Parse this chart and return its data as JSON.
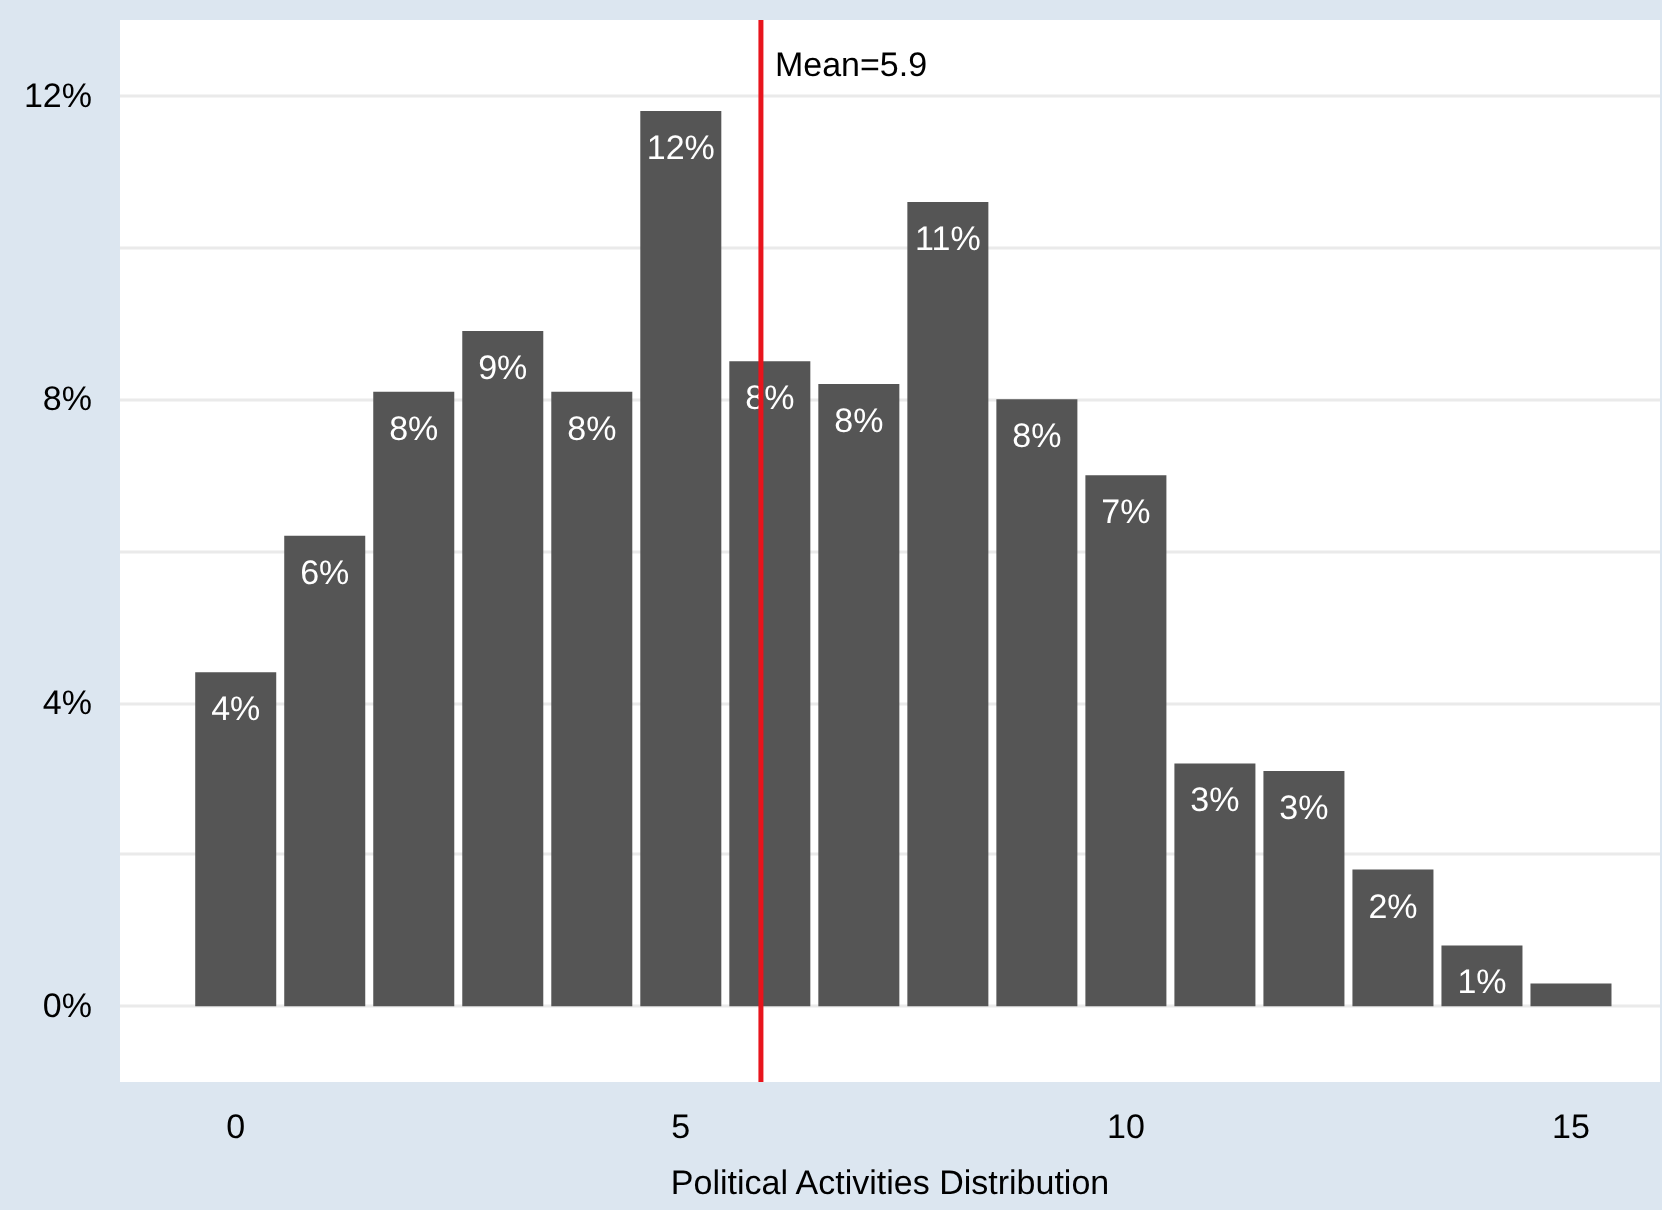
{
  "chart_data": {
    "type": "histogram",
    "xlabel": "Political Activities Distribution",
    "bins": [
      -0.5,
      0.5,
      1.5,
      2.5,
      3.5,
      4.5,
      5.5,
      6.5,
      7.5,
      8.5,
      9.5,
      10.5,
      11.5,
      12.5,
      13.5,
      14.5,
      15.5
    ],
    "values": [
      4.4,
      6.2,
      8.1,
      8.9,
      8.1,
      11.8,
      8.5,
      8.2,
      10.6,
      8.0,
      7.0,
      3.2,
      3.1,
      1.8,
      0.8,
      0.3
    ],
    "value_labels": [
      "4%",
      "6%",
      "8%",
      "9%",
      "8%",
      "12%",
      "8%",
      "8%",
      "11%",
      "8%",
      "7%",
      "3%",
      "3%",
      "2%",
      "1%",
      null
    ],
    "color": "#555555",
    "xlim": [
      -1.3,
      16
    ],
    "xticks": [
      0,
      5,
      10,
      15
    ],
    "ylim": [
      -1,
      13
    ],
    "yticks": [
      {
        "value": 0,
        "label": "0%"
      },
      {
        "value": 2,
        "label": null
      },
      {
        "value": 4,
        "label": "4%"
      },
      {
        "value": 6,
        "label": null
      },
      {
        "value": 8,
        "label": "8%"
      },
      {
        "value": 10,
        "label": null
      },
      {
        "value": 12,
        "label": "12%"
      }
    ],
    "grid": "y",
    "ref_lines": [
      {
        "axis": "x",
        "value": 5.9,
        "label": "Mean=5.9",
        "color": "#e8141c"
      }
    ]
  }
}
